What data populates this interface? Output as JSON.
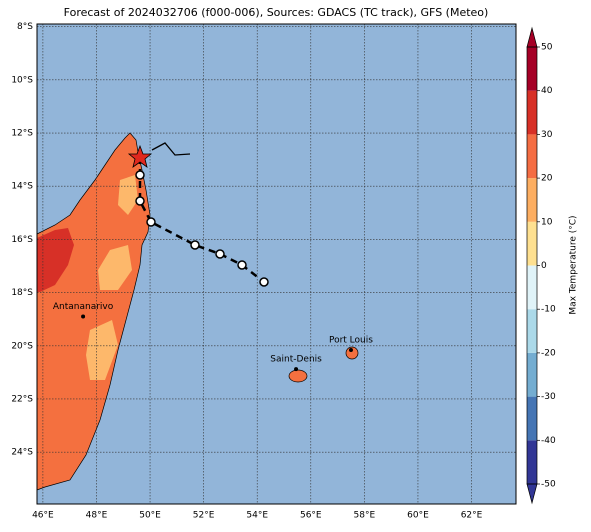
{
  "title": "Forecast of 2024032706 (f000-006), Sources: GDACS (TC track), GFS (Meteo)",
  "map": {
    "lonlim": [
      45.78,
      63.66
    ],
    "latlim": [
      -7.9,
      -25.95
    ],
    "lonticks": [
      {
        "value": 46,
        "label": "46°E"
      },
      {
        "value": 48,
        "label": "48°E"
      },
      {
        "value": 50,
        "label": "50°E"
      },
      {
        "value": 52,
        "label": "52°E"
      },
      {
        "value": 54,
        "label": "54°E"
      },
      {
        "value": 56,
        "label": "56°E"
      },
      {
        "value": 58,
        "label": "58°E"
      },
      {
        "value": 60,
        "label": "60°E"
      },
      {
        "value": 62,
        "label": "62°E"
      }
    ],
    "latticks": [
      {
        "value": -8,
        "label": "8°S"
      },
      {
        "value": -10,
        "label": "10°S"
      },
      {
        "value": -12,
        "label": "12°S"
      },
      {
        "value": -14,
        "label": "14°S"
      },
      {
        "value": -16,
        "label": "16°S"
      },
      {
        "value": -18,
        "label": "18°S"
      },
      {
        "value": -20,
        "label": "20°S"
      },
      {
        "value": -22,
        "label": "22°S"
      },
      {
        "value": -24,
        "label": "24°S"
      }
    ],
    "cities": [
      {
        "name": "Antananarivo",
        "lon": 47.5,
        "lat": -18.9
      },
      {
        "name": "Saint-Denis",
        "lon": 55.45,
        "lat": -20.88
      },
      {
        "name": "Port Louis",
        "lon": 57.5,
        "lat": -20.16
      }
    ]
  },
  "colorbar": {
    "label": "Max Temperature (°C)",
    "lim": [
      -50,
      50
    ],
    "ticks": [
      -50,
      -40,
      -30,
      -20,
      -10,
      0,
      10,
      20,
      30,
      40,
      50
    ],
    "colors": [
      "#313695",
      "#4575b4",
      "#74add1",
      "#abd9e9",
      "#e0f3f8",
      "#fee090",
      "#fdae61",
      "#f46d43",
      "#d73027",
      "#a50026"
    ]
  }
}
